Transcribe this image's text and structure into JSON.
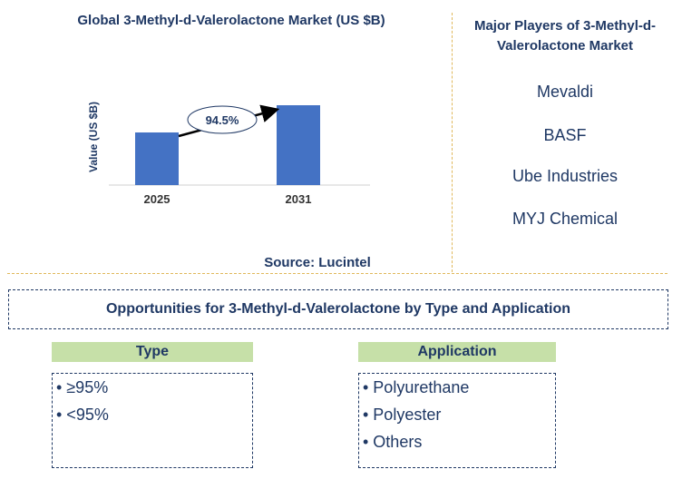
{
  "chart_title": "Global 3-Methyl-d-Valerolactone Market (US $B)",
  "source": "Source: Lucintel",
  "players": {
    "title": "Major Players of 3-Methyl-d-Valerolactone Market",
    "items": [
      "Mevaldi",
      "BASF",
      "Ube Industries",
      "MYJ Chemical"
    ]
  },
  "opportunities": {
    "title": "Opportunities for 3-Methyl-d-Valerolactone by Type and Application",
    "type": {
      "heading": "Type",
      "items": [
        "• ≥95%",
        "• <95%"
      ]
    },
    "application": {
      "heading": "Application",
      "items": [
        "• Polyurethane",
        "• Polyester",
        "• Others"
      ]
    }
  },
  "colors": {
    "bar": "#4472c4",
    "title": "#1f3864",
    "divider": "#e0b85a",
    "header_fill": "#c6e0a8"
  },
  "chart_data": {
    "type": "bar",
    "categories": [
      "2025",
      "2031"
    ],
    "values": [
      0.58,
      0.88
    ],
    "ylabel": "Value (US $B)",
    "ylim": [
      0,
      1
    ],
    "annotation": "94.5%",
    "grid": false,
    "legend": "none"
  }
}
